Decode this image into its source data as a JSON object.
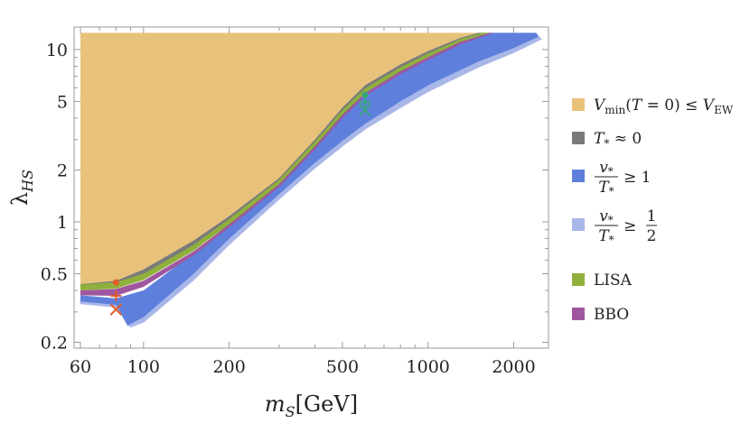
{
  "chart_data": {
    "type": "area",
    "xlabel_main": "m",
    "xlabel_sub": "S",
    "xlabel_unit": "[GeV]",
    "ylabel_main": "λ",
    "ylabel_sub": "HS",
    "xscale": "log",
    "yscale": "log",
    "xlim": [
      57,
      2650
    ],
    "ylim": [
      0.185,
      13.5
    ],
    "xticks": [
      60,
      100,
      200,
      500,
      1000,
      2000
    ],
    "xtick_labels": [
      "60",
      "100",
      "200",
      "500",
      "1000",
      "2000"
    ],
    "yticks": [
      0.2,
      0.5,
      1,
      2,
      5,
      10
    ],
    "ytick_labels": [
      "0.2",
      "0.5",
      "1",
      "2",
      "5",
      "10"
    ],
    "grid": false,
    "legend_position": "right",
    "regions": {
      "vmin": {
        "color": "#e8c27a",
        "upper": [
          [
            60,
            12.5
          ],
          [
            1800,
            12.5
          ]
        ],
        "lower": [
          [
            60,
            0.435
          ],
          [
            80,
            0.455
          ],
          [
            100,
            0.53
          ],
          [
            150,
            0.78
          ],
          [
            200,
            1.08
          ],
          [
            300,
            1.8
          ],
          [
            400,
            3.0
          ],
          [
            500,
            4.6
          ],
          [
            600,
            6.2
          ],
          [
            800,
            8.2
          ],
          [
            1000,
            9.8
          ],
          [
            1300,
            11.7
          ],
          [
            1500,
            12.5
          ]
        ]
      },
      "tzero": {
        "color": "#7a7a7a",
        "upper": [
          [
            60,
            0.435
          ],
          [
            80,
            0.455
          ],
          [
            100,
            0.53
          ],
          [
            150,
            0.78
          ],
          [
            200,
            1.08
          ],
          [
            300,
            1.8
          ],
          [
            400,
            3.0
          ],
          [
            500,
            4.6
          ],
          [
            600,
            6.2
          ],
          [
            800,
            8.2
          ],
          [
            1000,
            9.8
          ],
          [
            1300,
            11.7
          ],
          [
            1500,
            12.5
          ]
        ],
        "lower": [
          [
            60,
            0.4
          ],
          [
            80,
            0.415
          ],
          [
            100,
            0.47
          ],
          [
            150,
            0.69
          ],
          [
            200,
            0.96
          ],
          [
            300,
            1.62
          ],
          [
            400,
            2.7
          ],
          [
            500,
            4.1
          ],
          [
            600,
            5.6
          ],
          [
            800,
            7.4
          ],
          [
            1000,
            9.0
          ],
          [
            1300,
            11.0
          ],
          [
            1600,
            12.5
          ]
        ]
      },
      "v1": {
        "color": "#5e7fdc",
        "upper": [
          [
            60,
            0.375
          ],
          [
            80,
            0.36
          ],
          [
            100,
            0.4
          ],
          [
            150,
            0.66
          ],
          [
            200,
            0.96
          ],
          [
            300,
            1.62
          ],
          [
            400,
            2.7
          ],
          [
            500,
            4.1
          ],
          [
            600,
            5.6
          ],
          [
            800,
            7.4
          ],
          [
            1000,
            9.0
          ],
          [
            1300,
            11.0
          ],
          [
            1600,
            12.5
          ],
          [
            2400,
            12.5
          ]
        ],
        "lower": [
          [
            60,
            0.345
          ],
          [
            80,
            0.33
          ],
          [
            88,
            0.25
          ],
          [
            100,
            0.28
          ],
          [
            150,
            0.5
          ],
          [
            200,
            0.8
          ],
          [
            300,
            1.45
          ],
          [
            400,
            2.2
          ],
          [
            500,
            2.95
          ],
          [
            600,
            3.7
          ],
          [
            800,
            5.0
          ],
          [
            1000,
            6.2
          ],
          [
            1500,
            8.5
          ],
          [
            2000,
            10.2
          ],
          [
            2450,
            11.9
          ]
        ]
      },
      "vhalf": {
        "color": "#a9b7e8",
        "upper": [
          [
            60,
            0.345
          ],
          [
            80,
            0.33
          ],
          [
            88,
            0.25
          ],
          [
            100,
            0.28
          ],
          [
            150,
            0.5
          ],
          [
            200,
            0.8
          ],
          [
            300,
            1.45
          ],
          [
            400,
            2.2
          ],
          [
            500,
            2.95
          ],
          [
            600,
            3.7
          ],
          [
            800,
            5.0
          ],
          [
            1000,
            6.2
          ],
          [
            1500,
            8.5
          ],
          [
            2000,
            10.2
          ],
          [
            2450,
            11.9
          ]
        ],
        "lower": [
          [
            60,
            0.335
          ],
          [
            80,
            0.32
          ],
          [
            90,
            0.245
          ],
          [
            100,
            0.262
          ],
          [
            150,
            0.46
          ],
          [
            200,
            0.74
          ],
          [
            300,
            1.36
          ],
          [
            400,
            2.05
          ],
          [
            500,
            2.75
          ],
          [
            600,
            3.45
          ],
          [
            800,
            4.6
          ],
          [
            1000,
            5.7
          ],
          [
            1500,
            7.9
          ],
          [
            2000,
            9.6
          ],
          [
            2500,
            11.5
          ]
        ]
      },
      "lisa": {
        "color": "#8fb03b",
        "upper": [
          [
            60,
            0.432
          ],
          [
            80,
            0.447
          ],
          [
            100,
            0.5
          ],
          [
            150,
            0.735
          ],
          [
            200,
            1.04
          ],
          [
            300,
            1.76
          ],
          [
            400,
            2.92
          ],
          [
            500,
            4.45
          ],
          [
            600,
            5.95
          ],
          [
            800,
            7.9
          ],
          [
            1000,
            9.5
          ],
          [
            1300,
            11.5
          ],
          [
            1550,
            12.5
          ]
        ],
        "lower": [
          [
            60,
            0.4
          ],
          [
            80,
            0.41
          ],
          [
            100,
            0.46
          ],
          [
            150,
            0.68
          ],
          [
            200,
            0.97
          ],
          [
            300,
            1.66
          ],
          [
            400,
            2.75
          ],
          [
            500,
            4.2
          ],
          [
            600,
            5.6
          ],
          [
            800,
            7.5
          ],
          [
            1000,
            9.05
          ],
          [
            1300,
            11.1
          ],
          [
            1650,
            12.5
          ]
        ]
      },
      "bbo": {
        "color": "#a0569e",
        "upper": [
          [
            60,
            0.4
          ],
          [
            80,
            0.408
          ],
          [
            100,
            0.455
          ],
          [
            150,
            0.675
          ],
          [
            200,
            0.965
          ],
          [
            300,
            1.65
          ],
          [
            400,
            2.72
          ],
          [
            500,
            4.15
          ],
          [
            600,
            5.55
          ],
          [
            800,
            7.45
          ],
          [
            1000,
            9.0
          ],
          [
            1300,
            11.05
          ],
          [
            1650,
            12.5
          ]
        ],
        "lower": [
          [
            60,
            0.375
          ],
          [
            80,
            0.372
          ],
          [
            100,
            0.42
          ],
          [
            150,
            0.64
          ],
          [
            200,
            0.93
          ],
          [
            300,
            1.6
          ],
          [
            400,
            2.63
          ],
          [
            500,
            4.0
          ],
          [
            600,
            5.35
          ],
          [
            800,
            7.2
          ],
          [
            1000,
            8.7
          ],
          [
            1300,
            10.7
          ],
          [
            1700,
            12.5
          ]
        ]
      }
    },
    "markers": [
      {
        "type": "dot",
        "x": 80,
        "y": 0.445,
        "color": "#e55d2b"
      },
      {
        "type": "plus",
        "x": 80,
        "y": 0.372,
        "color": "#e55d2b"
      },
      {
        "type": "cross",
        "x": 80,
        "y": 0.31,
        "color": "#e55d2b"
      },
      {
        "type": "dot",
        "x": 600,
        "y": 5.45,
        "color": "#3aa57a"
      },
      {
        "type": "plus",
        "x": 600,
        "y": 4.95,
        "color": "#3aa57a"
      },
      {
        "type": "cross",
        "x": 600,
        "y": 4.45,
        "color": "#3aa57a"
      }
    ],
    "legend": [
      {
        "key": "vmin",
        "color": "#e8c27a",
        "kind": "vmin",
        "parts": [
          "V",
          "min",
          "(",
          "T",
          " = 0) ≤ ",
          "V",
          "EW"
        ]
      },
      {
        "key": "tzero",
        "color": "#7a7a7a",
        "kind": "tzero",
        "parts": [
          "T",
          "*",
          " ≈ 0"
        ]
      },
      {
        "key": "v1",
        "color": "#5e7fdc",
        "kind": "frac",
        "parts": [
          "v",
          "*",
          "T",
          "*",
          "≥ 1"
        ]
      },
      {
        "key": "vhalf",
        "color": "#a9b7e8",
        "kind": "frac2",
        "parts": [
          "v",
          "*",
          "T",
          "*",
          "≥",
          "1",
          "2"
        ]
      },
      {
        "key": "lisa",
        "color": "#8fb03b",
        "kind": "text",
        "parts": [
          "LISA"
        ]
      },
      {
        "key": "bbo",
        "color": "#a0569e",
        "kind": "text",
        "parts": [
          "BBO"
        ]
      }
    ]
  }
}
